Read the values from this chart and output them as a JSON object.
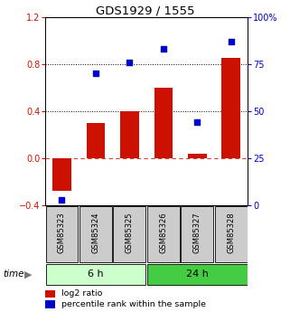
{
  "title": "GDS1929 / 1555",
  "categories": [
    "GSM85323",
    "GSM85324",
    "GSM85325",
    "GSM85326",
    "GSM85327",
    "GSM85328"
  ],
  "log2_ratio": [
    -0.28,
    0.3,
    0.4,
    0.6,
    0.04,
    0.85
  ],
  "percentile_rank": [
    3,
    70,
    76,
    83,
    44,
    87
  ],
  "bar_color": "#cc1100",
  "dot_color": "#0000cc",
  "left_ylim": [
    -0.4,
    1.2
  ],
  "right_ylim": [
    0,
    100
  ],
  "left_yticks": [
    -0.4,
    0.0,
    0.4,
    0.8,
    1.2
  ],
  "right_yticks": [
    0,
    25,
    50,
    75,
    100
  ],
  "hline_y": [
    0.4,
    0.8
  ],
  "group1_color": "#ccffcc",
  "group2_color": "#44cc44",
  "gray_box_color": "#cccccc",
  "legend_items": [
    "log2 ratio",
    "percentile rank within the sample"
  ]
}
